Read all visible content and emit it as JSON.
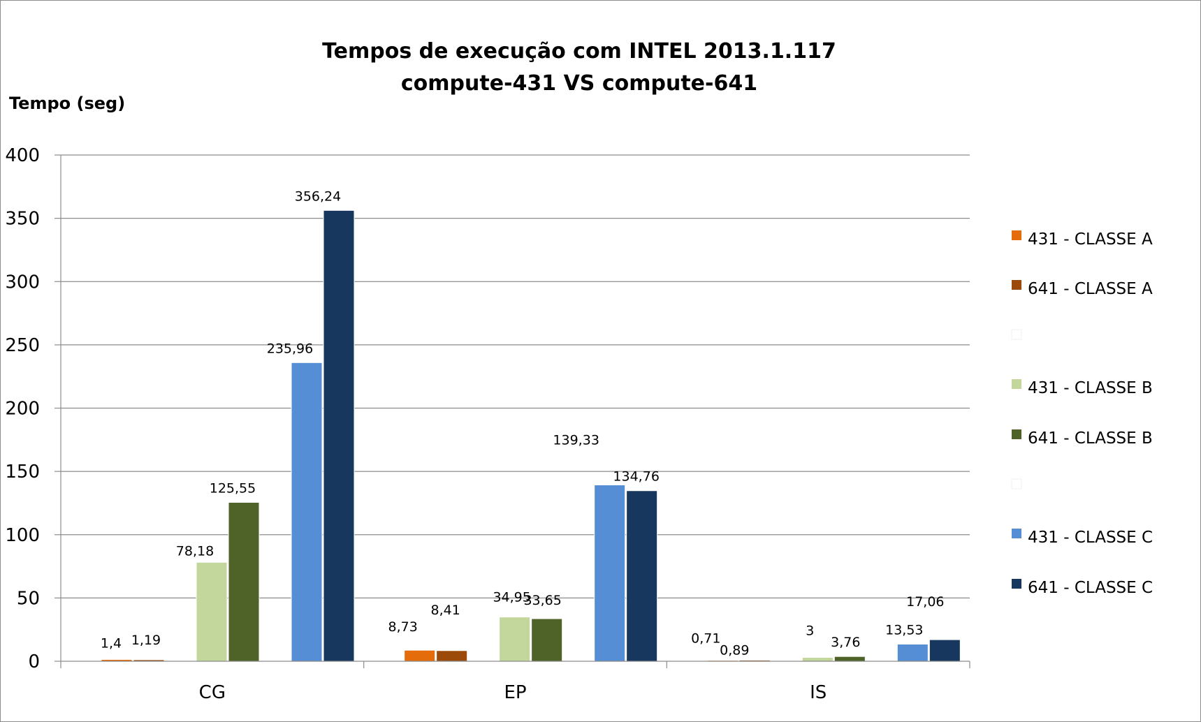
{
  "chart_data": {
    "type": "bar",
    "title_line1": "Tempos de execução com INTEL 2013.1.117",
    "title_line2": "compute-431 VS compute-641",
    "ylabel": "Tempo (seg)",
    "xlabel": "",
    "ylim": [
      0,
      400
    ],
    "yticks": [
      0,
      50,
      100,
      150,
      200,
      250,
      300,
      350,
      400
    ],
    "grid": true,
    "legend_position": "right",
    "categories": [
      "CG",
      "EP",
      "IS"
    ],
    "series": [
      {
        "name": "431 - CLASSE A",
        "color": "#e46c0a",
        "values": [
          1.4,
          8.73,
          0.71
        ],
        "labels": [
          "1,4",
          "8,73",
          "0,71"
        ]
      },
      {
        "name": "641 - CLASSE A",
        "color": "#9c4a0a",
        "values": [
          1.19,
          8.41,
          0.89
        ],
        "labels": [
          "1,19",
          "8,41",
          "0,89"
        ]
      },
      {
        "name": "431 - CLASSE B",
        "color": "#c3d69b",
        "values": [
          78.18,
          34.95,
          3
        ],
        "labels": [
          "78,18",
          "34,95",
          "3"
        ]
      },
      {
        "name": "641 - CLASSE B",
        "color": "#4f6228",
        "values": [
          125.55,
          33.65,
          3.76
        ],
        "labels": [
          "125,55",
          "33,65",
          "3,76"
        ]
      },
      {
        "name": "431 - CLASSE C",
        "color": "#558ed5",
        "values": [
          235.96,
          139.33,
          13.53
        ],
        "labels": [
          "235,96",
          "139,33",
          "13,53"
        ]
      },
      {
        "name": "641 - CLASSE C",
        "color": "#17375e",
        "values": [
          356.24,
          134.76,
          17.06
        ],
        "labels": [
          "356,24",
          "134,76",
          "17,06"
        ]
      }
    ]
  }
}
